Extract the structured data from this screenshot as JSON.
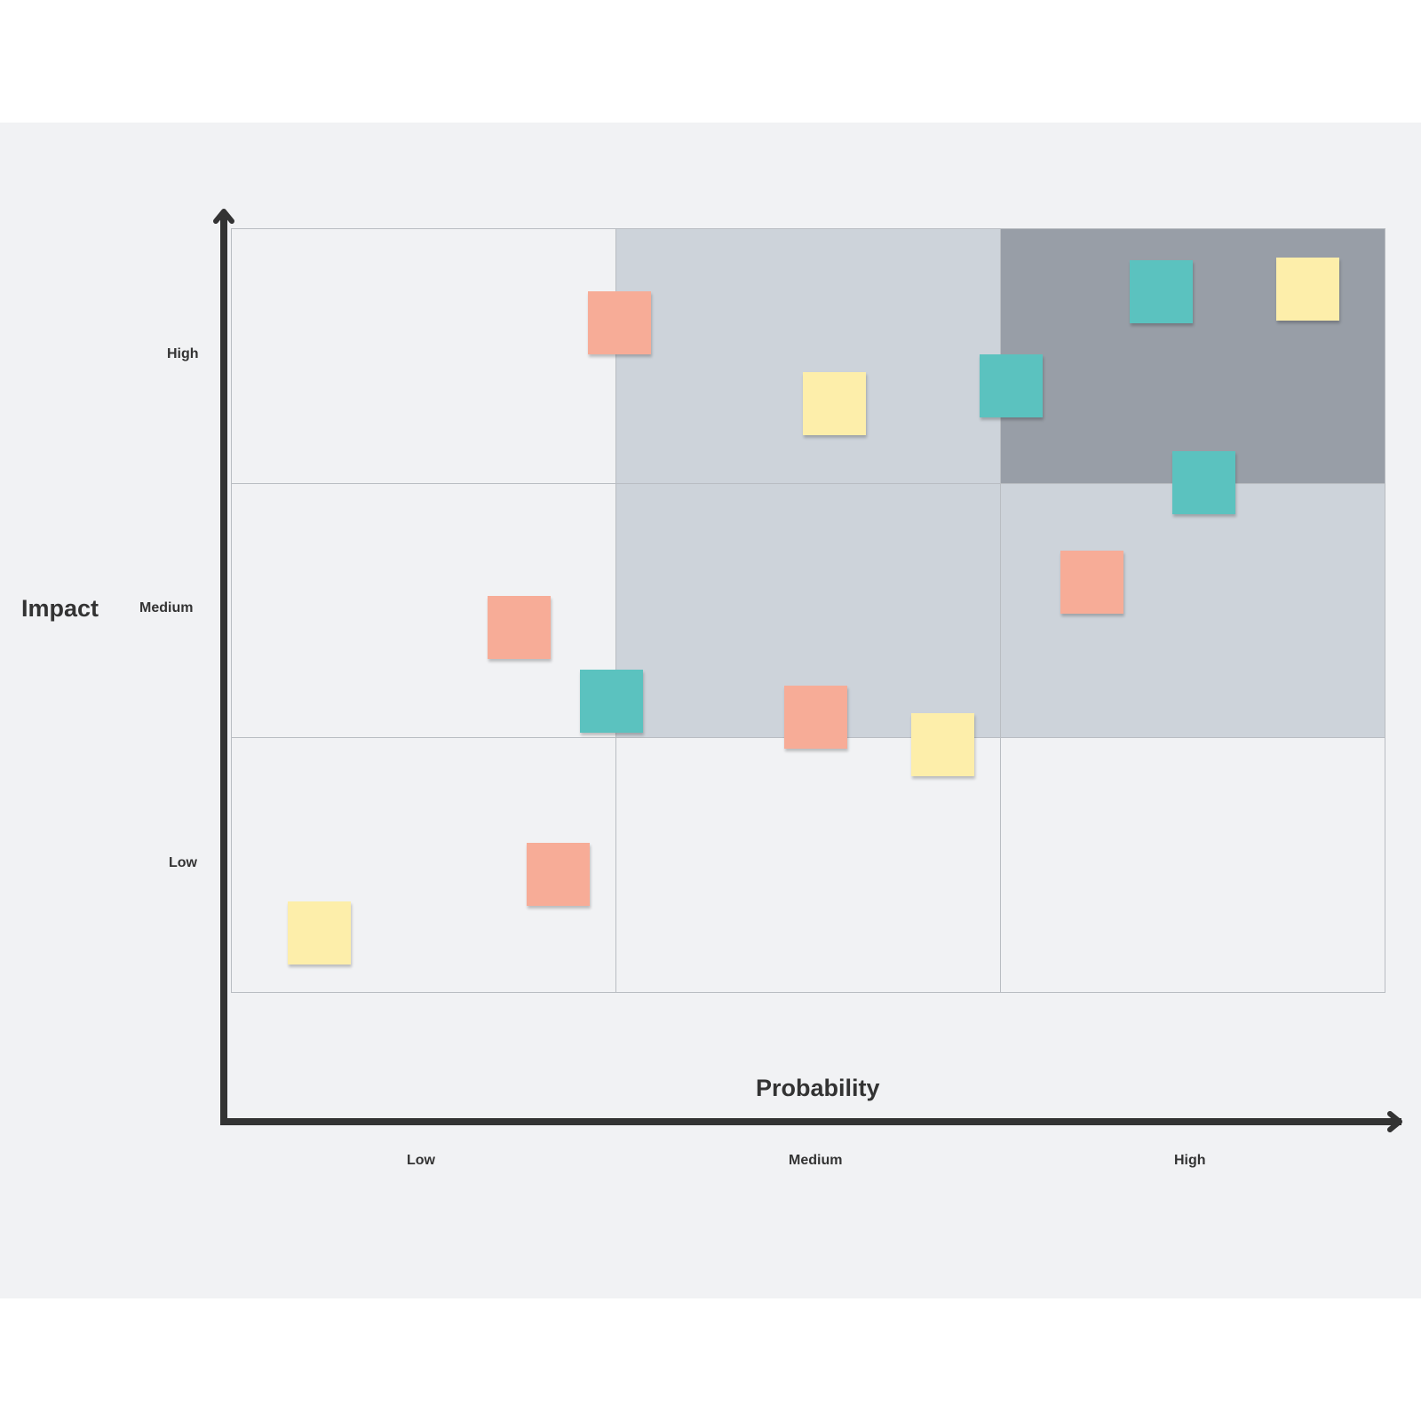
{
  "board": {
    "x_axis_title": "Probability",
    "y_axis_title": "Impact",
    "x_levels": [
      "Low",
      "Medium",
      "High"
    ],
    "y_levels": [
      "High",
      "Medium",
      "Low"
    ],
    "grid": [
      [
        "#f1f2f4",
        "#cdd3da",
        "#989ea7"
      ],
      [
        "#f1f2f4",
        "#cdd3da",
        "#cdd3da"
      ],
      [
        "#f1f2f4",
        "#f1f2f4",
        "#f1f2f4"
      ]
    ],
    "note_colors": {
      "salmon": "#f7ac97",
      "yellow": "#fdeeaa",
      "teal": "#5bc2bf"
    }
  },
  "chart_data": {
    "type": "scatter",
    "title": "",
    "xlabel": "Probability",
    "ylabel": "Impact",
    "x_categories": [
      "Low",
      "Medium",
      "High"
    ],
    "y_categories": [
      "Low",
      "Medium",
      "High"
    ],
    "xlim": [
      0,
      3
    ],
    "ylim": [
      0,
      3
    ],
    "points": [
      {
        "x": 1.01,
        "y": 2.63,
        "color": "salmon"
      },
      {
        "x": 1.57,
        "y": 2.31,
        "color": "yellow"
      },
      {
        "x": 2.03,
        "y": 2.38,
        "color": "teal"
      },
      {
        "x": 2.42,
        "y": 2.75,
        "color": "teal"
      },
      {
        "x": 2.8,
        "y": 2.76,
        "color": "yellow"
      },
      {
        "x": 2.53,
        "y": 2.0,
        "color": "teal"
      },
      {
        "x": 2.24,
        "y": 1.61,
        "color": "salmon"
      },
      {
        "x": 0.75,
        "y": 1.43,
        "color": "salmon"
      },
      {
        "x": 0.99,
        "y": 1.14,
        "color": "teal"
      },
      {
        "x": 1.52,
        "y": 1.08,
        "color": "salmon"
      },
      {
        "x": 1.85,
        "y": 0.97,
        "color": "yellow"
      },
      {
        "x": 0.85,
        "y": 0.46,
        "color": "salmon"
      },
      {
        "x": 0.23,
        "y": 0.23,
        "color": "yellow"
      }
    ]
  }
}
